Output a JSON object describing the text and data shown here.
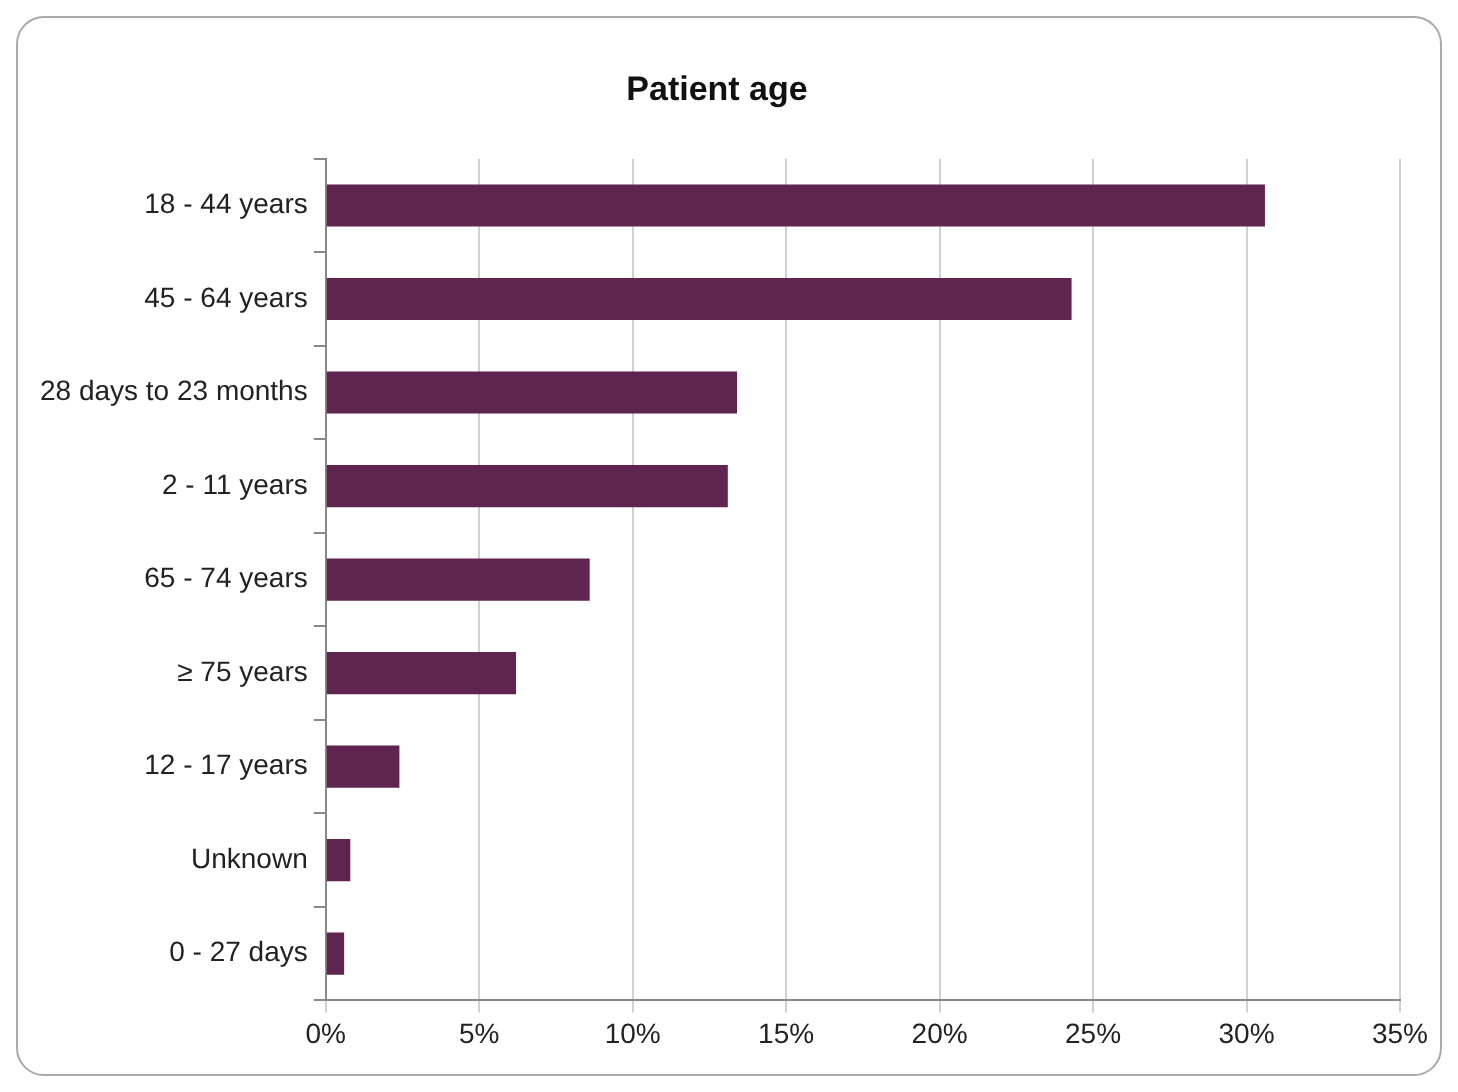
{
  "chart_data": {
    "type": "bar",
    "orientation": "horizontal",
    "title": "Patient age",
    "categories": [
      "18 - 44 years",
      "45 - 64 years",
      "28 days to 23 months",
      "2 - 11 years",
      "65 - 74 years",
      "≥ 75 years",
      "12 - 17 years",
      "Unknown",
      "0 - 27 days"
    ],
    "values": [
      30.6,
      24.3,
      13.4,
      13.1,
      8.6,
      6.2,
      2.4,
      0.8,
      0.6
    ],
    "color": "#5f2550",
    "xlim": [
      0,
      35
    ],
    "xticks": [
      {
        "value": 0,
        "label": "0%"
      },
      {
        "value": 5,
        "label": "5%"
      },
      {
        "value": 10,
        "label": "10%"
      },
      {
        "value": 15,
        "label": "15%"
      },
      {
        "value": 20,
        "label": "20%"
      },
      {
        "value": 25,
        "label": "25%"
      },
      {
        "value": 30,
        "label": "30%"
      },
      {
        "value": 35,
        "label": "35%"
      }
    ],
    "grid": "x"
  }
}
